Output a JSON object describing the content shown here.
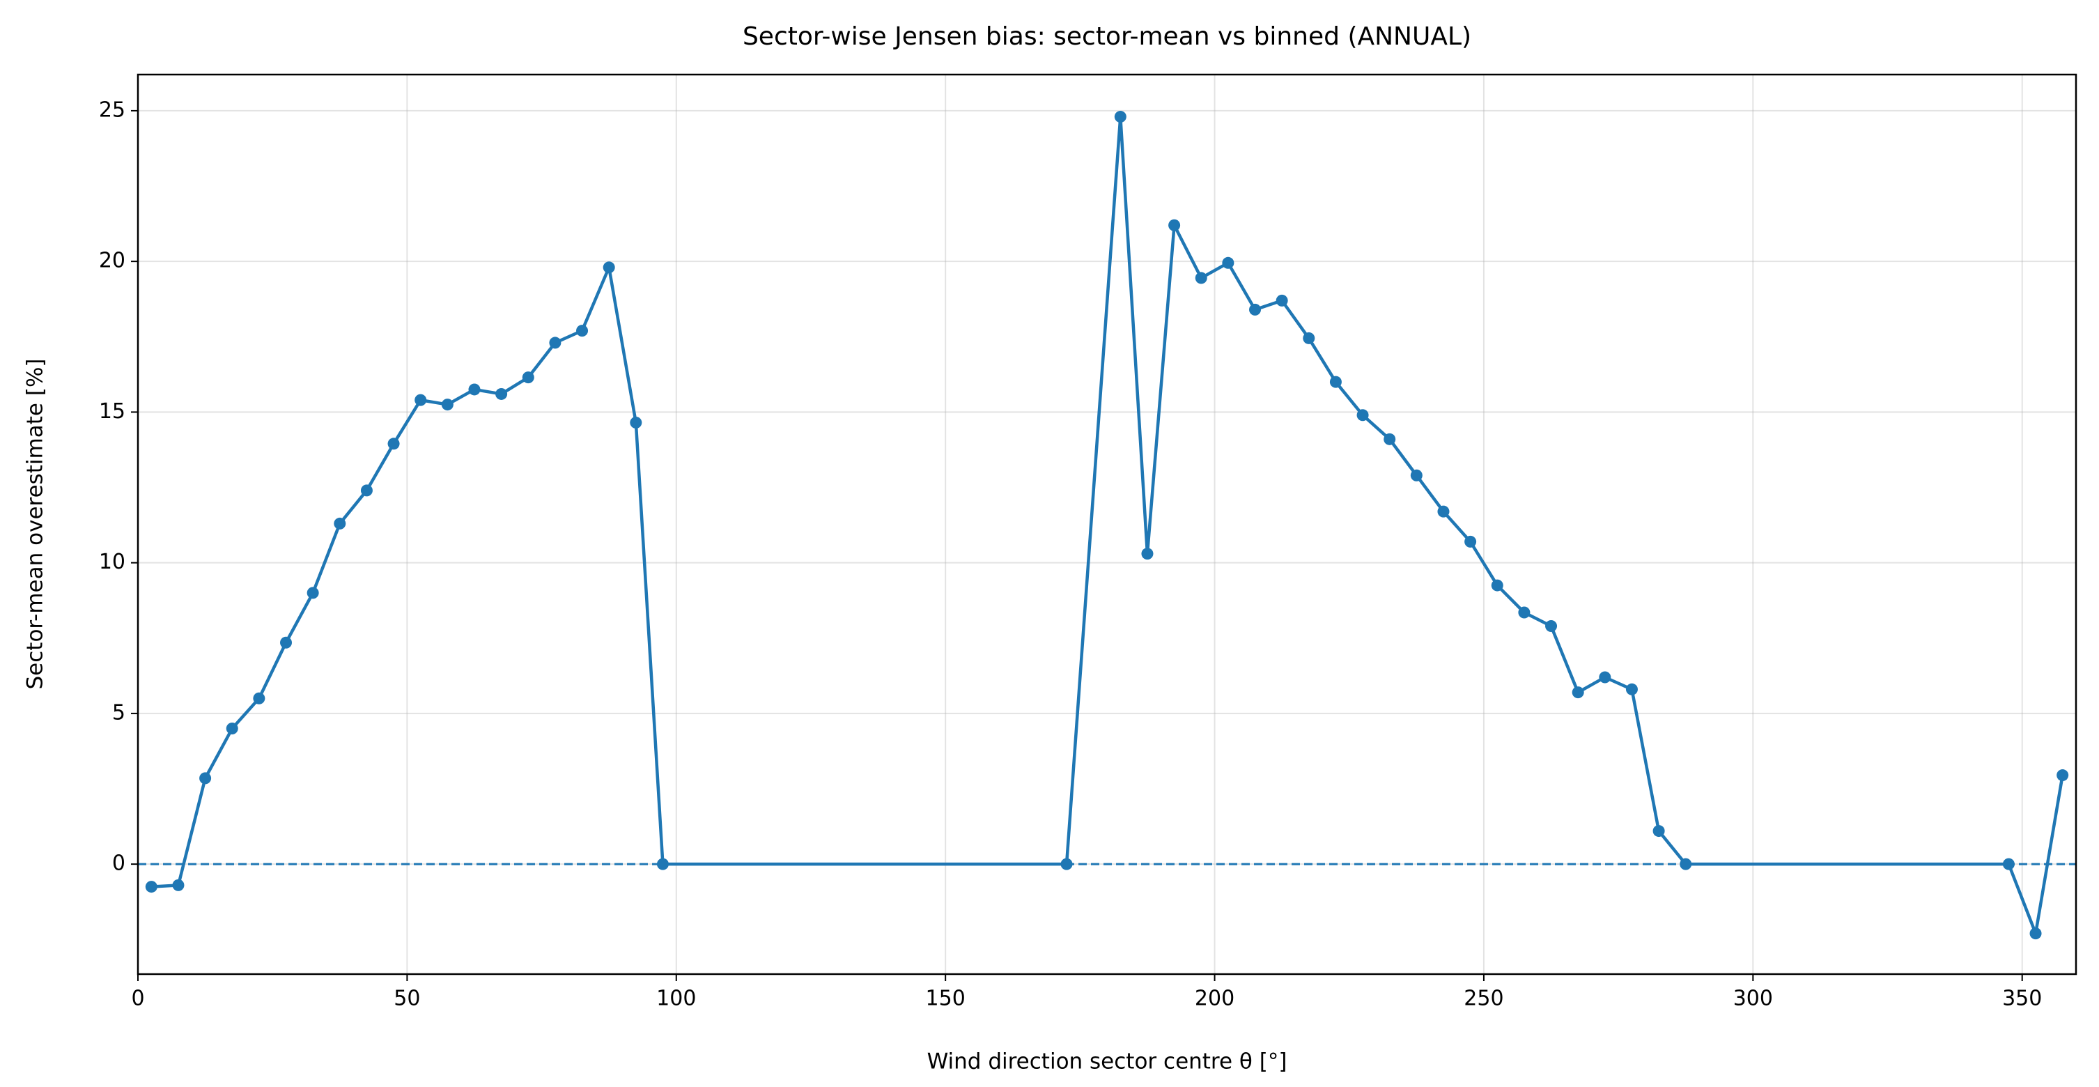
{
  "chart_data": {
    "type": "line",
    "title": "Sector-wise Jensen bias: sector-mean vs binned (ANNUAL)",
    "x_label": "Wind direction sector centre θ [°]",
    "y_label": "Sector-mean overestimate [%]",
    "x": [
      2.5,
      7.5,
      12.5,
      17.5,
      22.5,
      27.5,
      32.5,
      37.5,
      42.5,
      47.5,
      52.5,
      57.5,
      62.5,
      67.5,
      72.5,
      77.5,
      82.5,
      87.5,
      92.5,
      97.5,
      172.5,
      182.5,
      187.5,
      192.5,
      197.5,
      202.5,
      207.5,
      212.5,
      217.5,
      222.5,
      227.5,
      232.5,
      237.5,
      242.5,
      247.5,
      252.5,
      257.5,
      262.5,
      267.5,
      272.5,
      277.5,
      282.5,
      287.5,
      347.5,
      352.5,
      357.5
    ],
    "series": [
      {
        "name": "sector-mean vs binned",
        "color": "#1f77b4",
        "values": [
          -0.75,
          -0.7,
          2.85,
          4.5,
          5.5,
          7.35,
          9.0,
          11.3,
          12.4,
          13.95,
          15.4,
          15.25,
          15.75,
          15.6,
          16.15,
          17.3,
          17.7,
          19.8,
          14.65,
          0,
          0,
          24.8,
          10.3,
          21.2,
          19.45,
          19.95,
          18.4,
          18.7,
          17.45,
          16.0,
          14.9,
          14.1,
          12.9,
          11.7,
          10.7,
          9.25,
          8.35,
          7.9,
          5.7,
          6.2,
          5.8,
          1.1,
          0,
          0,
          -2.3,
          2.95
        ]
      }
    ],
    "reference_line": 0,
    "xlim": [
      0,
      360
    ],
    "ylim": [
      -3.65,
      26.2
    ],
    "xticks": [
      0,
      50,
      100,
      150,
      200,
      250,
      300,
      350
    ],
    "yticks": [
      0,
      5,
      10,
      15,
      20,
      25
    ],
    "grid": true
  }
}
